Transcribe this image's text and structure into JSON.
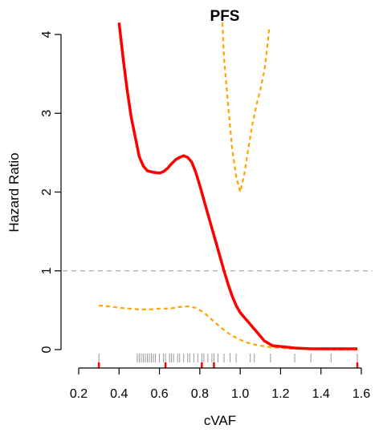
{
  "chart_data": {
    "type": "line",
    "title": "PFS",
    "xlabel": "cVAF",
    "ylabel": "Hazard Ratio",
    "xlim": [
      0.2,
      1.6
    ],
    "ylim": [
      0,
      4
    ],
    "x_ticks": [
      "0.2",
      "0.4",
      "0.6",
      "0.8",
      "1.0",
      "1.2",
      "1.4",
      "1.6"
    ],
    "y_ticks": [
      "0",
      "1",
      "2",
      "3",
      "4"
    ],
    "reference_line": {
      "y": 1,
      "style": "dashed",
      "color": "#aaaaaa"
    },
    "grid": false,
    "colors": {
      "estimate": "#ff0000",
      "ci": "#ffa500",
      "rug": "#999999",
      "rug_event": "#ff0000"
    },
    "series": [
      {
        "role": "estimate",
        "x": [
          0.4,
          0.42,
          0.44,
          0.46,
          0.48,
          0.5,
          0.52,
          0.54,
          0.57,
          0.6,
          0.62,
          0.64,
          0.66,
          0.68,
          0.7,
          0.72,
          0.74,
          0.76,
          0.78,
          0.8,
          0.82,
          0.84,
          0.86,
          0.88,
          0.9,
          0.92,
          0.94,
          0.96,
          0.98,
          1.0,
          1.04,
          1.08,
          1.12,
          1.16,
          1.2,
          1.27,
          1.35,
          1.45,
          1.58
        ],
        "y": [
          4.15,
          3.7,
          3.3,
          2.95,
          2.7,
          2.45,
          2.33,
          2.27,
          2.25,
          2.24,
          2.26,
          2.3,
          2.36,
          2.41,
          2.44,
          2.46,
          2.44,
          2.38,
          2.25,
          2.08,
          1.9,
          1.72,
          1.54,
          1.36,
          1.18,
          1.0,
          0.83,
          0.68,
          0.56,
          0.47,
          0.35,
          0.23,
          0.11,
          0.05,
          0.04,
          0.02,
          0.01,
          0.01,
          0.01
        ]
      },
      {
        "role": "ci_upper",
        "x": [
          0.912,
          0.92,
          0.94,
          0.96,
          0.98,
          1.0,
          1.02,
          1.04,
          1.06,
          1.08,
          1.1,
          1.12,
          1.13,
          1.145
        ],
        "y": [
          4.15,
          3.7,
          3.1,
          2.55,
          2.2,
          2.0,
          2.22,
          2.55,
          2.85,
          3.1,
          3.3,
          3.55,
          3.75,
          4.1
        ]
      },
      {
        "role": "ci_lower",
        "x": [
          0.3,
          0.35,
          0.4,
          0.45,
          0.5,
          0.55,
          0.6,
          0.65,
          0.7,
          0.74,
          0.78,
          0.82,
          0.86,
          0.9,
          0.94,
          0.98,
          1.02,
          1.06,
          1.1,
          1.15,
          1.2,
          1.27,
          1.35,
          1.45,
          1.58
        ],
        "y": [
          0.56,
          0.55,
          0.53,
          0.52,
          0.51,
          0.51,
          0.52,
          0.52,
          0.54,
          0.55,
          0.53,
          0.47,
          0.38,
          0.29,
          0.21,
          0.15,
          0.1,
          0.07,
          0.05,
          0.03,
          0.02,
          0.01,
          0.01,
          0.0,
          0.0
        ]
      }
    ],
    "rug": [
      0.3,
      0.49,
      0.5,
      0.51,
      0.52,
      0.53,
      0.54,
      0.55,
      0.56,
      0.57,
      0.58,
      0.6,
      0.62,
      0.63,
      0.65,
      0.66,
      0.67,
      0.69,
      0.7,
      0.72,
      0.74,
      0.75,
      0.77,
      0.79,
      0.81,
      0.82,
      0.84,
      0.86,
      0.87,
      0.89,
      0.92,
      0.95,
      0.98,
      1.05,
      1.07,
      1.15,
      1.27,
      1.35,
      1.45,
      1.58
    ],
    "rug_events": [
      0.3,
      0.63,
      0.81,
      0.87,
      1.58
    ]
  }
}
